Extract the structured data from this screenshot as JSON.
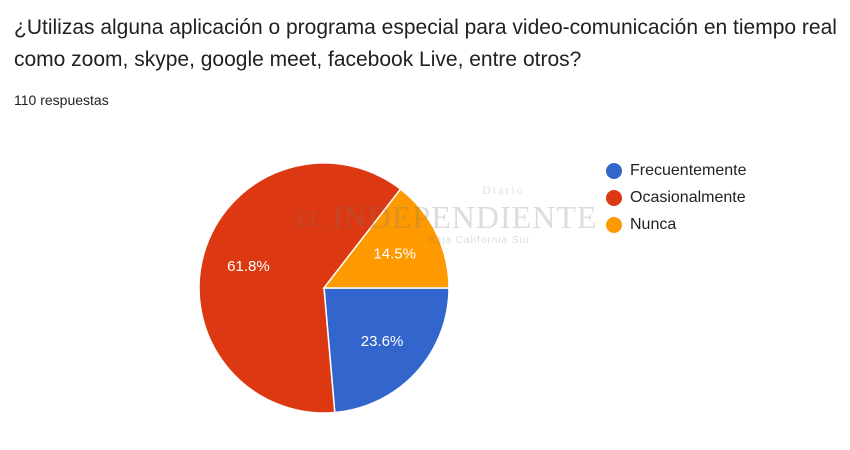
{
  "question": "¿Utilizas alguna aplicación o programa especial para video-comunicación en tiempo real como zoom, skype, google meet, facebook Live, entre otros?",
  "response_count": "110 respuestas",
  "watermark": {
    "top": "Diario",
    "el": "EL",
    "main": "INDEPENDIENTE",
    "sub": "Baja California Sur"
  },
  "chart_data": {
    "type": "pie",
    "title": "",
    "legend_position": "right",
    "categories": [
      "Frecuentemente",
      "Ocasionalmente",
      "Nunca"
    ],
    "values": [
      23.6,
      61.8,
      14.5
    ],
    "labels": [
      "23.6%",
      "61.8%",
      "14.5%"
    ],
    "colors": [
      "#3366cc",
      "#dc3912",
      "#ff9900"
    ],
    "label_color": "#ffffff"
  }
}
